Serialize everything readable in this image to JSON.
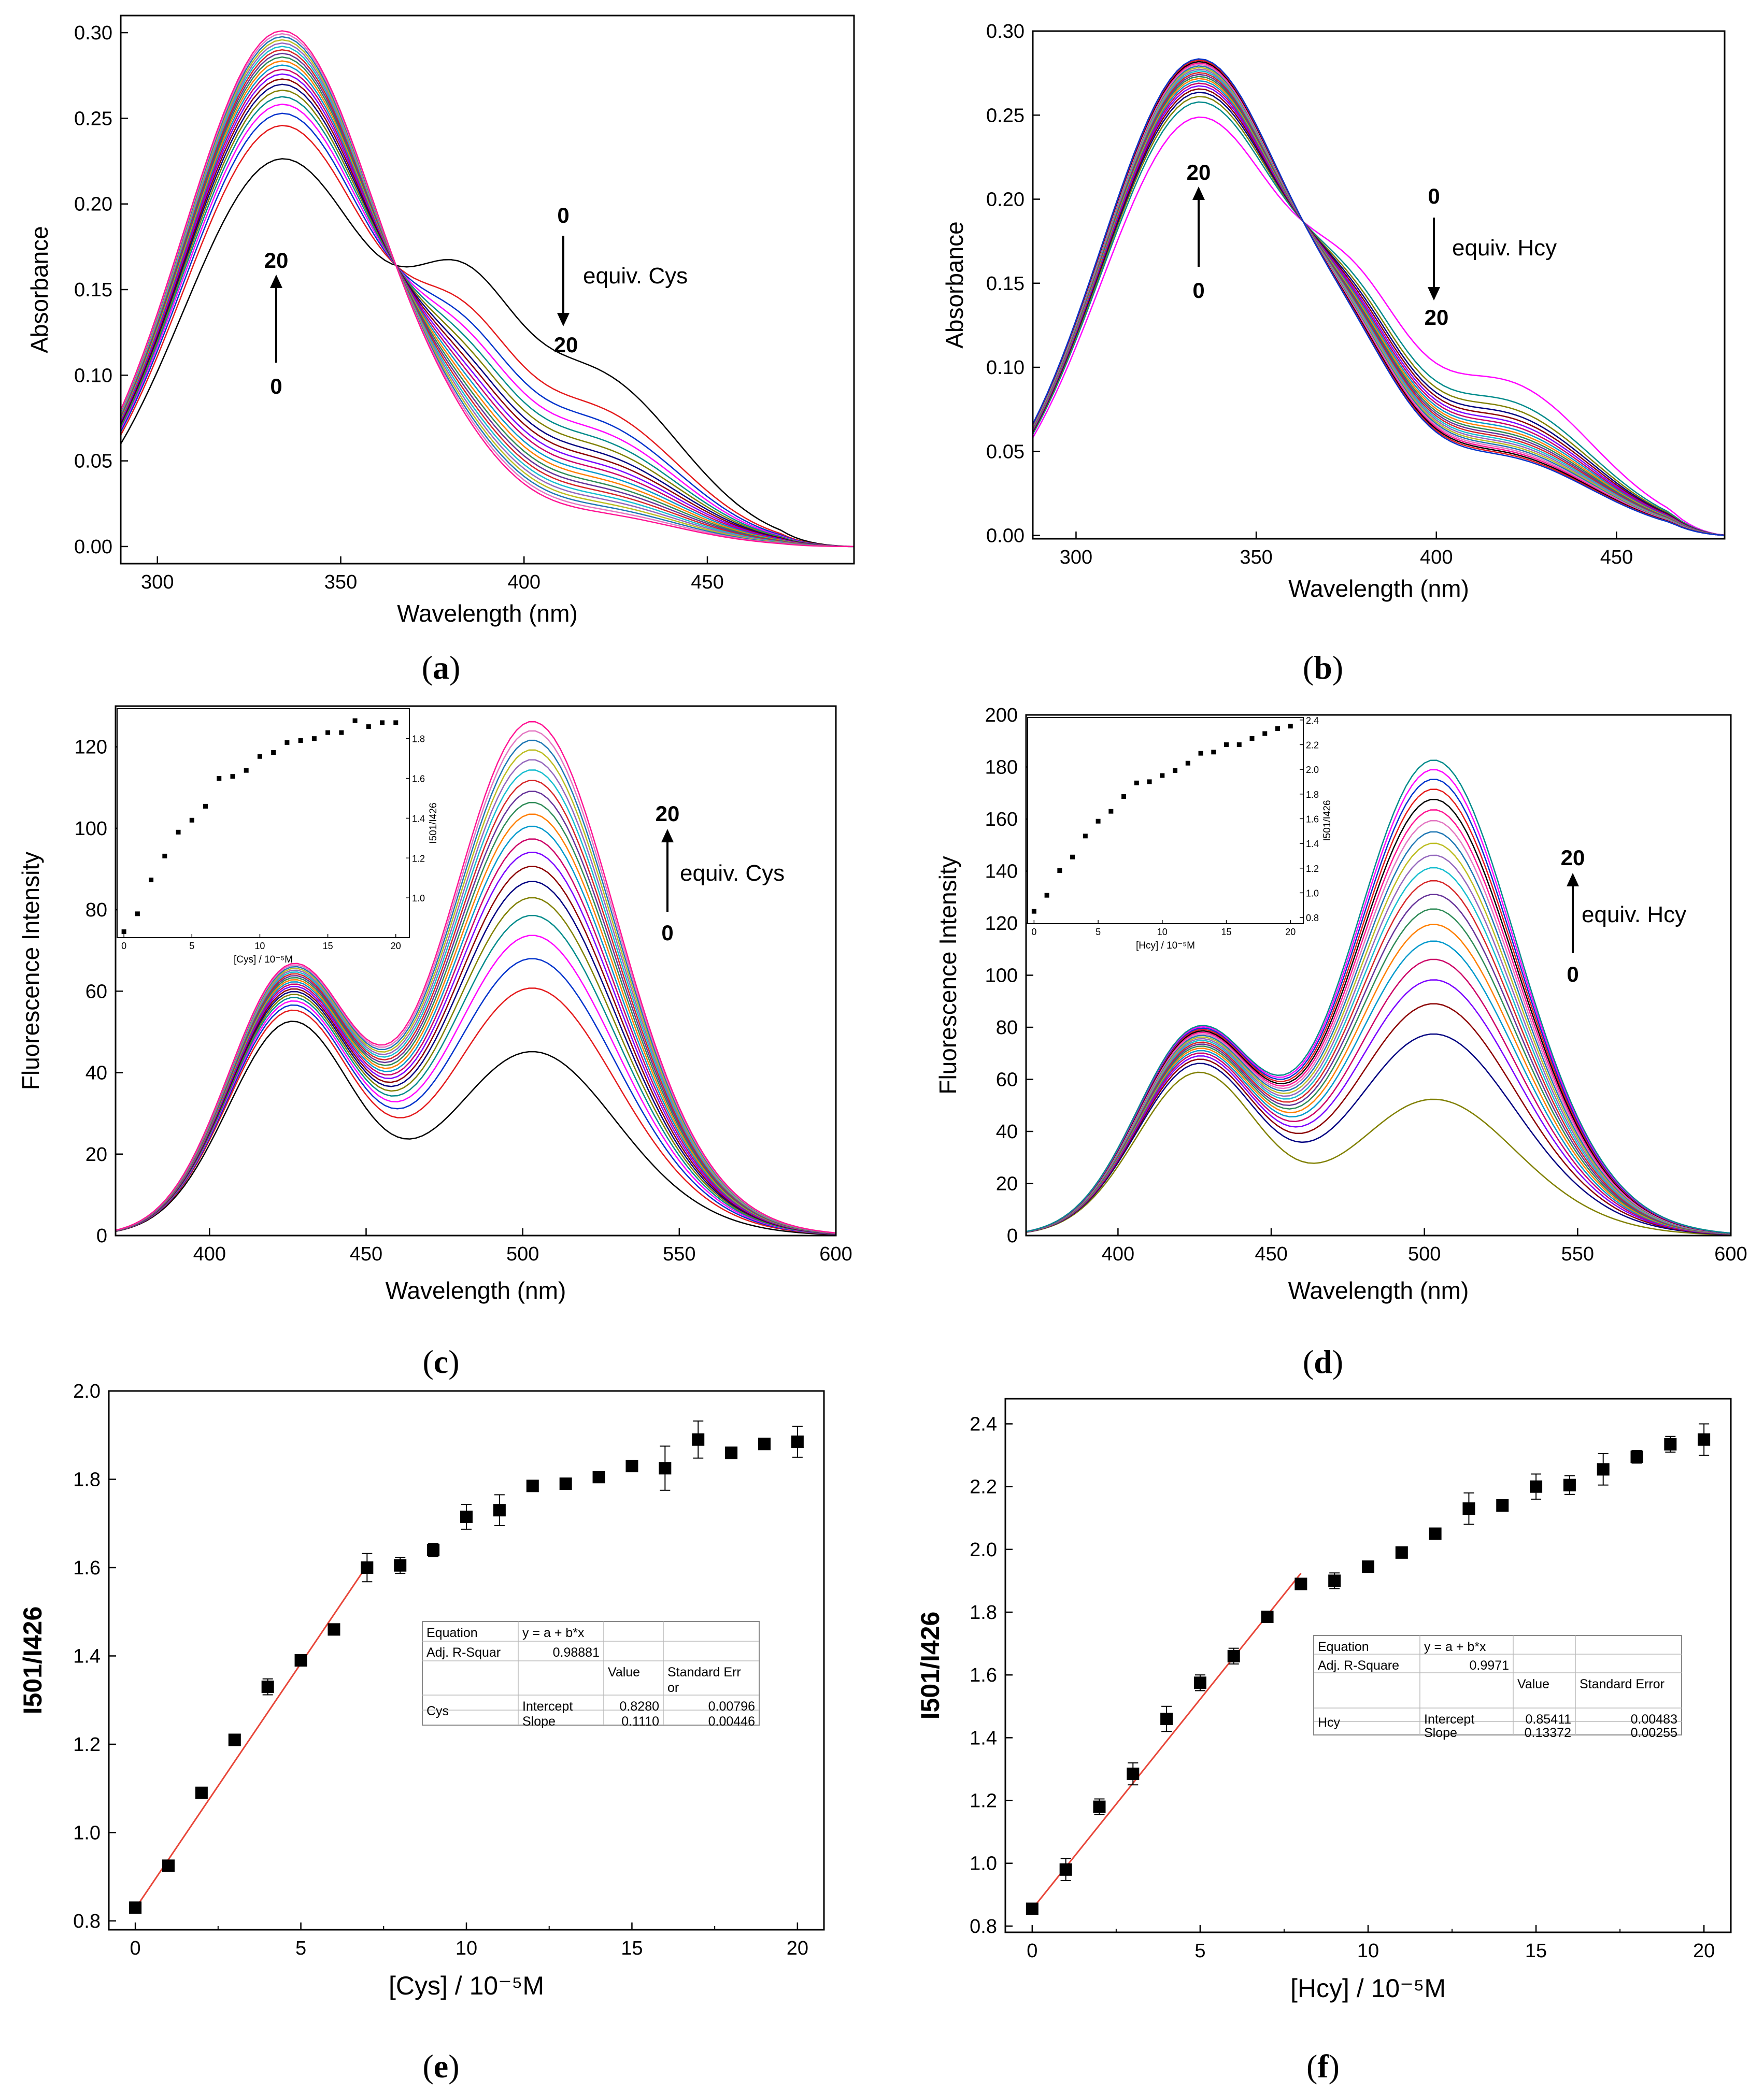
{
  "chart_data": [
    {
      "id": "a",
      "type": "line",
      "panel_label": "a",
      "xlabel": "Wavelength (nm)",
      "ylabel": "Absorbance",
      "xlim": [
        290,
        490
      ],
      "ylim": [
        -0.01,
        0.31
      ],
      "xticks": [
        300,
        350,
        400,
        450
      ],
      "xtick_labels": [
        "300",
        "350",
        "400",
        "450"
      ],
      "yticks": [
        0.0,
        0.05,
        0.1,
        0.15,
        0.2,
        0.25,
        0.3
      ],
      "ytick_labels": [
        "0.00",
        "0.05",
        "0.10",
        "0.15",
        "0.20",
        "0.25",
        "0.30"
      ],
      "series_count": 21,
      "series_note": "0 to 20 equiv. Cys",
      "first_spectrum": {
        "peak1_x": 333,
        "peak1_y": 0.226,
        "shoulder_x": 385,
        "shoulder_y": 0.16,
        "band2_x": 412,
        "band2_y": 0.1
      },
      "last_spectrum": {
        "peak1_x": 335,
        "peak1_y": 0.301,
        "shoulder_y": 0.03,
        "band2_y": 0.018
      },
      "annotations": [
        {
          "top": "20",
          "bottom": "0",
          "direction": "up"
        },
        {
          "top": "0",
          "bottom": "20",
          "direction": "down",
          "text": "equiv. Cys"
        }
      ]
    },
    {
      "id": "b",
      "type": "line",
      "panel_label": "b",
      "xlabel": "Wavelength (nm)",
      "ylabel": "Absorbance",
      "xlim": [
        288,
        480
      ],
      "ylim": [
        -0.002,
        0.3
      ],
      "xticks": [
        300,
        350,
        400,
        450
      ],
      "xtick_labels": [
        "300",
        "350",
        "400",
        "450"
      ],
      "yticks": [
        0.0,
        0.05,
        0.1,
        0.15,
        0.2,
        0.25,
        0.3
      ],
      "ytick_labels": [
        "0.00",
        "0.05",
        "0.10",
        "0.15",
        "0.20",
        "0.25",
        "0.30"
      ],
      "series_count": 21,
      "series_note": "0 to 20 equiv. Hcy",
      "first_spectrum": {
        "peak1_x": 332,
        "peak1_y": 0.248,
        "shoulder_x": 378,
        "shoulder_y": 0.14,
        "band2_x": 415,
        "band2_y": 0.09
      },
      "last_spectrum": {
        "peak1_x": 335,
        "peak1_y": 0.283,
        "shoulder_y": 0.085,
        "band2_y": 0.045
      },
      "annotations": [
        {
          "top": "20",
          "bottom": "0",
          "direction": "up"
        },
        {
          "top": "0",
          "bottom": "20",
          "direction": "down",
          "text": "equiv. Hcy"
        }
      ]
    },
    {
      "id": "c",
      "type": "line",
      "panel_label": "c",
      "xlabel": "Wavelength (nm)",
      "ylabel": "Fluorescence Intensity",
      "xlim": [
        370,
        600
      ],
      "ylim": [
        0,
        130
      ],
      "xticks": [
        400,
        450,
        500,
        550,
        600
      ],
      "xtick_labels": [
        "400",
        "450",
        "500",
        "550",
        "600"
      ],
      "yticks": [
        0,
        20,
        40,
        60,
        80,
        100,
        120
      ],
      "ytick_labels": [
        "0",
        "20",
        "40",
        "60",
        "80",
        "100",
        "120"
      ],
      "series_count": 21,
      "peak1_values": [
        52,
        65
      ],
      "peak2_values": [
        44,
        123
      ],
      "annotations": [
        {
          "top": "20",
          "bottom": "0",
          "direction": "up",
          "text": "equiv. Cys"
        }
      ],
      "inset": {
        "type": "scatter",
        "xlabel": "[Cys] / 10⁻⁵M",
        "ylabel": "I501/I426",
        "xlim": [
          -0.5,
          21
        ],
        "ylim": [
          0.8,
          1.95
        ],
        "xticks": [
          0,
          5,
          10,
          15,
          20
        ],
        "xtick_labels": [
          "0",
          "5",
          "10",
          "15",
          "20"
        ],
        "yticks": [
          1.0,
          1.2,
          1.4,
          1.6,
          1.8
        ],
        "ytick_labels": [
          "1.0",
          "1.2",
          "1.4",
          "1.6",
          "1.8"
        ],
        "x": [
          0,
          1,
          2,
          3,
          4,
          5,
          6,
          7,
          8,
          9,
          10,
          11,
          12,
          13,
          14,
          15,
          16,
          17,
          18,
          19,
          20
        ],
        "y": [
          0.83,
          0.92,
          1.09,
          1.21,
          1.33,
          1.39,
          1.46,
          1.6,
          1.61,
          1.64,
          1.71,
          1.73,
          1.78,
          1.79,
          1.8,
          1.83,
          1.83,
          1.89,
          1.86,
          1.88,
          1.88
        ]
      }
    },
    {
      "id": "d",
      "type": "line",
      "panel_label": "d",
      "xlabel": "Wavelength (nm)",
      "ylabel": "Fluorescence Intensity",
      "xlim": [
        370,
        600
      ],
      "ylim": [
        0,
        200
      ],
      "xticks": [
        400,
        450,
        500,
        550,
        600
      ],
      "xtick_labels": [
        "400",
        "450",
        "500",
        "550",
        "600"
      ],
      "yticks": [
        0,
        20,
        40,
        60,
        80,
        100,
        120,
        140,
        160,
        180,
        200
      ],
      "ytick_labels": [
        "0",
        "20",
        "40",
        "60",
        "80",
        "100",
        "120",
        "140",
        "160",
        "180",
        "200"
      ],
      "series_count": 21,
      "peak1_values": [
        62,
        78
      ],
      "peak2_values": [
        51,
        178
      ],
      "annotations": [
        {
          "top": "20",
          "bottom": "0",
          "direction": "up",
          "text": "equiv. Hcy"
        }
      ],
      "inset": {
        "type": "scatter",
        "xlabel": "[Hcy] / 10⁻⁵M",
        "ylabel": "I501/I426",
        "xlim": [
          -0.5,
          21
        ],
        "ylim": [
          0.75,
          2.42
        ],
        "xticks": [
          0,
          5,
          10,
          15,
          20
        ],
        "xtick_labels": [
          "0",
          "5",
          "10",
          "15",
          "20"
        ],
        "yticks": [
          0.8,
          1.0,
          1.2,
          1.4,
          1.6,
          1.8,
          2.0,
          2.2,
          2.4
        ],
        "ytick_labels": [
          "0.8",
          "1.0",
          "1.2",
          "1.4",
          "1.6",
          "1.8",
          "2.0",
          "2.2",
          "2.4"
        ],
        "x": [
          0,
          1,
          2,
          3,
          4,
          5,
          6,
          7,
          8,
          9,
          10,
          11,
          12,
          13,
          14,
          15,
          16,
          17,
          18,
          19,
          20
        ],
        "y": [
          0.85,
          0.98,
          1.18,
          1.29,
          1.46,
          1.58,
          1.66,
          1.78,
          1.89,
          1.9,
          1.95,
          1.99,
          2.05,
          2.13,
          2.14,
          2.2,
          2.2,
          2.25,
          2.29,
          2.33,
          2.35
        ]
      }
    },
    {
      "id": "e",
      "type": "scatter",
      "panel_label": "e",
      "xlabel": "[Cys] / 10⁻⁵M",
      "ylabel": "I501/I426",
      "xlim": [
        -0.8,
        20.8
      ],
      "ylim": [
        0.78,
        2.0
      ],
      "xticks": [
        0,
        5,
        10,
        15,
        20
      ],
      "xtick_labels": [
        "0",
        "5",
        "10",
        "15",
        "20"
      ],
      "yticks": [
        0.8,
        1.0,
        1.2,
        1.4,
        1.6,
        1.8,
        2.0
      ],
      "ytick_labels": [
        "0.8",
        "1.0",
        "1.2",
        "1.4",
        "1.6",
        "1.8",
        "2.0"
      ],
      "x": [
        0,
        1,
        2,
        3,
        4,
        5,
        6,
        7,
        8,
        9,
        10,
        11,
        12,
        13,
        14,
        15,
        16,
        17,
        18,
        19,
        20
      ],
      "y": [
        0.83,
        0.925,
        1.09,
        1.21,
        1.33,
        1.39,
        1.46,
        1.6,
        1.605,
        1.64,
        1.715,
        1.73,
        1.785,
        1.79,
        1.805,
        1.83,
        1.825,
        1.89,
        1.86,
        1.88,
        1.885
      ],
      "err": [
        0.005,
        0.01,
        0.012,
        0.008,
        0.018,
        0.012,
        0.008,
        0.032,
        0.018,
        0.015,
        0.028,
        0.035,
        0.008,
        0.008,
        0.008,
        0.012,
        0.05,
        0.042,
        0.008,
        0.008,
        0.035
      ],
      "fit": {
        "x_range": [
          0,
          7
        ],
        "intercept": 0.828,
        "slope": 0.111
      },
      "fit_table": {
        "rows": [
          [
            "Equation",
            "y = a + b*x",
            "",
            ""
          ],
          [
            "Adj. R-Squar",
            "0.98881",
            "",
            ""
          ],
          [
            "",
            "",
            "Value",
            "Standard Error"
          ],
          [
            "Cys",
            "Intercept",
            "0.8280",
            "0.00796"
          ],
          [
            "",
            "Slope",
            "0.1110",
            "0.00446"
          ]
        ],
        "stderr_header_line1": "Standard Err",
        "stderr_header_line2": "or"
      }
    },
    {
      "id": "f",
      "type": "scatter",
      "panel_label": "f",
      "xlabel": "[Hcy] / 10⁻⁵M",
      "ylabel": "I501/I426",
      "xlim": [
        -0.8,
        20.8
      ],
      "ylim": [
        0.78,
        2.48
      ],
      "xticks": [
        0,
        5,
        10,
        15,
        20
      ],
      "xtick_labels": [
        "0",
        "5",
        "10",
        "15",
        "20"
      ],
      "yticks": [
        0.8,
        1.0,
        1.2,
        1.4,
        1.6,
        1.8,
        2.0,
        2.2,
        2.4
      ],
      "ytick_labels": [
        "0.8",
        "1.0",
        "1.2",
        "1.4",
        "1.6",
        "1.8",
        "2.0",
        "2.2",
        "2.4"
      ],
      "x": [
        0,
        1,
        2,
        3,
        4,
        5,
        6,
        7,
        8,
        9,
        10,
        11,
        12,
        13,
        14,
        15,
        16,
        17,
        18,
        19,
        20
      ],
      "y": [
        0.855,
        0.98,
        1.18,
        1.285,
        1.46,
        1.575,
        1.66,
        1.785,
        1.89,
        1.9,
        1.945,
        1.99,
        2.05,
        2.13,
        2.14,
        2.2,
        2.205,
        2.255,
        2.295,
        2.335,
        2.35
      ],
      "err": [
        0.006,
        0.035,
        0.025,
        0.035,
        0.04,
        0.025,
        0.025,
        0.015,
        0.015,
        0.025,
        0.008,
        0.008,
        0.008,
        0.05,
        0.008,
        0.04,
        0.03,
        0.05,
        0.02,
        0.025,
        0.05
      ],
      "fit": {
        "x_range": [
          0,
          8
        ],
        "intercept": 0.85411,
        "slope": 0.13372
      },
      "fit_table": {
        "rows": [
          [
            "Equation",
            "y = a + b*x",
            "",
            ""
          ],
          [
            "Adj. R-Square",
            "0.9971",
            "",
            ""
          ],
          [
            "",
            "",
            "Value",
            "Standard Error"
          ],
          [
            "Hcy",
            "Intercept",
            "0.85411",
            "0.00483"
          ],
          [
            "",
            "Slope",
            "0.13372",
            "0.00255"
          ]
        ]
      }
    }
  ]
}
